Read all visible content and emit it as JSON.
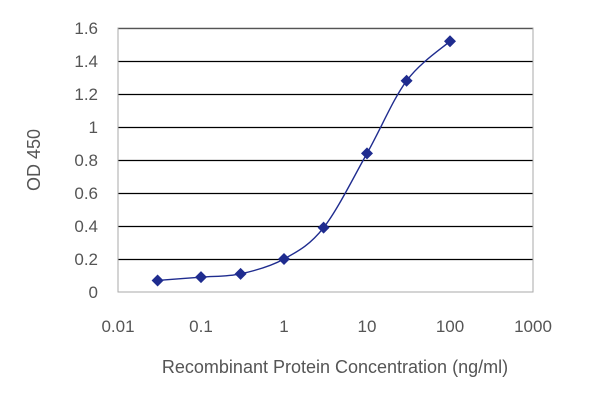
{
  "chart_data": {
    "type": "scatter",
    "title": "",
    "xlabel": "Recombinant Protein Concentration (ng/ml)",
    "ylabel": "OD 450",
    "x_scale": "log",
    "xlim": [
      0.01,
      1000
    ],
    "ylim": [
      0,
      1.6
    ],
    "x_ticks": [
      0.01,
      0.1,
      1,
      10,
      100,
      1000
    ],
    "x_tick_labels": [
      "0.01",
      "0.1",
      "1",
      "10",
      "100",
      "1000"
    ],
    "y_ticks": [
      0,
      0.2,
      0.4,
      0.6,
      0.8,
      1,
      1.2,
      1.4,
      1.6
    ],
    "y_tick_labels": [
      "0",
      "0.2",
      "0.4",
      "0.6",
      "0.8",
      "1",
      "1.2",
      "1.4",
      "1.6"
    ],
    "grid": "horizontal",
    "legend": "none",
    "series": [
      {
        "x": [
          0.03,
          0.1,
          0.3,
          1,
          3,
          10,
          30,
          100
        ],
        "y": [
          0.07,
          0.09,
          0.11,
          0.2,
          0.39,
          0.84,
          1.28,
          1.52
        ],
        "marker": "diamond",
        "line": "smooth",
        "color": "#1f2c8f"
      }
    ],
    "colors": {
      "plot_background": "#ffffff",
      "grid": "#000000",
      "frame": "#aaaaaa",
      "text": "#555555"
    }
  }
}
